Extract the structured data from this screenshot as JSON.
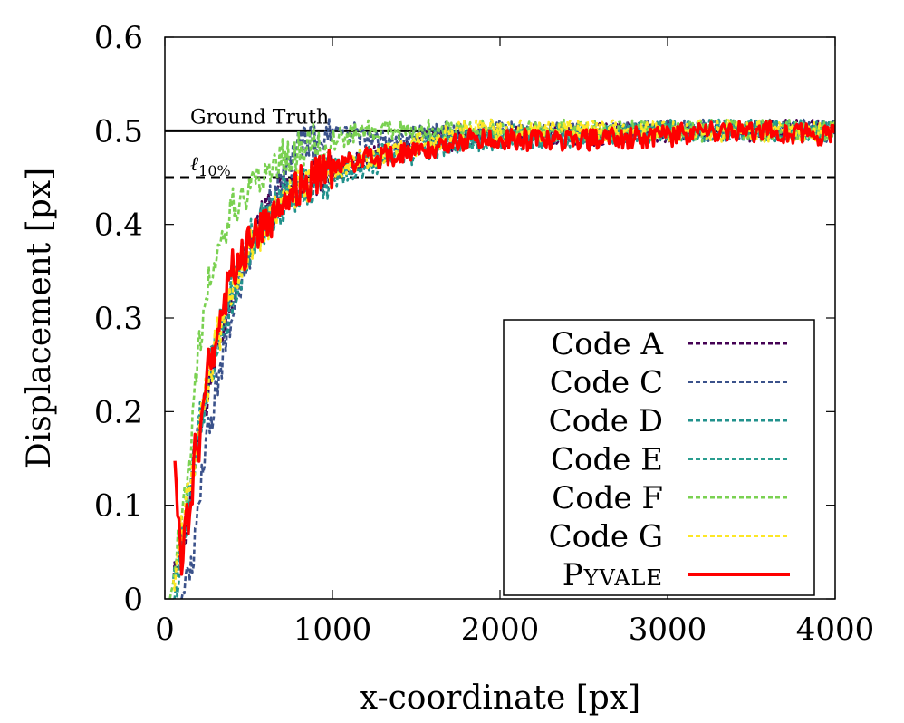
{
  "chart_data": {
    "type": "line",
    "xlabel": "x-coordinate [px]",
    "ylabel": "Displacement [px]",
    "xlim": [
      0,
      4000
    ],
    "ylim": [
      0,
      0.6
    ],
    "x_ticks": [
      "0",
      "1000",
      "2000",
      "3000",
      "4000"
    ],
    "y_ticks": [
      "0",
      "0.1",
      "0.2",
      "0.3",
      "0.4",
      "0.5",
      "0.6"
    ],
    "x_tick_values": [
      0,
      1000,
      2000,
      3000,
      4000
    ],
    "y_tick_values": [
      0,
      0.1,
      0.2,
      0.3,
      0.4,
      0.5,
      0.6
    ],
    "legend_position": "lower-right",
    "reference_lines": [
      {
        "label": "Ground Truth",
        "value": 0.5,
        "style": "solid",
        "color": "#000000"
      },
      {
        "label": "ℓ",
        "sub": "10%",
        "value": 0.45,
        "style": "dashed",
        "color": "#000000"
      }
    ],
    "series": [
      {
        "name": "Code A",
        "color": "#440154",
        "dashed": true,
        "x": [
          50,
          100,
          150,
          200,
          300,
          400,
          500,
          600,
          700,
          800,
          900,
          1000,
          1200,
          1400,
          1600,
          1800,
          2000,
          2500,
          3000,
          3500,
          4000
        ],
        "y": [
          0.01,
          0.06,
          0.1,
          0.17,
          0.26,
          0.33,
          0.38,
          0.41,
          0.43,
          0.44,
          0.45,
          0.46,
          0.47,
          0.48,
          0.49,
          0.49,
          0.495,
          0.495,
          0.5,
          0.5,
          0.5
        ]
      },
      {
        "name": "Code C",
        "color": "#3b528b",
        "dashed": true,
        "x": [
          100,
          150,
          200,
          250,
          300,
          400,
          500,
          600,
          700,
          800,
          900,
          1000,
          1100,
          1200,
          1400,
          1600,
          1800,
          2000,
          2500,
          3000,
          3500,
          4000
        ],
        "y": [
          0.0,
          0.02,
          0.09,
          0.17,
          0.22,
          0.31,
          0.37,
          0.41,
          0.45,
          0.48,
          0.49,
          0.5,
          0.5,
          0.49,
          0.49,
          0.5,
          0.495,
          0.5,
          0.495,
          0.5,
          0.5,
          0.5
        ]
      },
      {
        "name": "Code D",
        "color": "#21918c",
        "dashed": true,
        "x": [
          50,
          100,
          150,
          200,
          300,
          400,
          500,
          600,
          700,
          800,
          900,
          1000,
          1200,
          1400,
          1600,
          1800,
          2000,
          2500,
          3000,
          3500,
          4000
        ],
        "y": [
          0.0,
          0.05,
          0.11,
          0.18,
          0.26,
          0.32,
          0.37,
          0.4,
          0.42,
          0.44,
          0.44,
          0.45,
          0.46,
          0.47,
          0.48,
          0.49,
          0.49,
          0.495,
          0.5,
          0.5,
          0.5
        ]
      },
      {
        "name": "Code E",
        "color": "#2a9d8f",
        "dashed": true,
        "x": [
          50,
          100,
          150,
          200,
          300,
          400,
          500,
          600,
          700,
          800,
          900,
          1000,
          1200,
          1400,
          1600,
          1800,
          2000,
          2500,
          3000,
          3500,
          4000
        ],
        "y": [
          0.01,
          0.07,
          0.12,
          0.19,
          0.27,
          0.34,
          0.38,
          0.41,
          0.43,
          0.44,
          0.45,
          0.46,
          0.47,
          0.48,
          0.49,
          0.49,
          0.495,
          0.495,
          0.5,
          0.5,
          0.5
        ]
      },
      {
        "name": "Code F",
        "color": "#7ad151",
        "dashed": true,
        "x": [
          30,
          80,
          120,
          160,
          200,
          250,
          300,
          350,
          400,
          500,
          600,
          700,
          800,
          900,
          1000,
          1200,
          1400,
          1600,
          1800,
          2000,
          2500,
          3000,
          3500,
          4000
        ],
        "y": [
          0.0,
          0.06,
          0.11,
          0.17,
          0.26,
          0.33,
          0.36,
          0.39,
          0.42,
          0.43,
          0.45,
          0.47,
          0.48,
          0.49,
          0.49,
          0.5,
          0.5,
          0.5,
          0.5,
          0.5,
          0.5,
          0.5,
          0.5,
          0.5
        ]
      },
      {
        "name": "Code G",
        "color": "#fde725",
        "dashed": true,
        "x": [
          50,
          100,
          150,
          200,
          300,
          400,
          500,
          600,
          700,
          800,
          900,
          1000,
          1200,
          1400,
          1600,
          1800,
          2000,
          2500,
          3000,
          3500,
          4000
        ],
        "y": [
          0.02,
          0.07,
          0.12,
          0.18,
          0.27,
          0.33,
          0.37,
          0.4,
          0.42,
          0.44,
          0.45,
          0.46,
          0.47,
          0.48,
          0.49,
          0.5,
          0.5,
          0.5,
          0.5,
          0.5,
          0.5
        ]
      },
      {
        "name": "Pyvale",
        "display": "Pyvale",
        "smallcaps": true,
        "color": "#ff0000",
        "dashed": false,
        "x": [
          60,
          80,
          100,
          120,
          150,
          180,
          200,
          250,
          300,
          350,
          400,
          500,
          600,
          700,
          800,
          900,
          1000,
          1100,
          1200,
          1400,
          1600,
          1800,
          2000,
          2500,
          3000,
          3500,
          4000
        ],
        "y": [
          0.13,
          0.09,
          0.03,
          0.1,
          0.07,
          0.16,
          0.15,
          0.24,
          0.27,
          0.31,
          0.35,
          0.38,
          0.4,
          0.42,
          0.44,
          0.45,
          0.46,
          0.465,
          0.47,
          0.475,
          0.48,
          0.49,
          0.49,
          0.49,
          0.495,
          0.5,
          0.495
        ]
      }
    ]
  }
}
